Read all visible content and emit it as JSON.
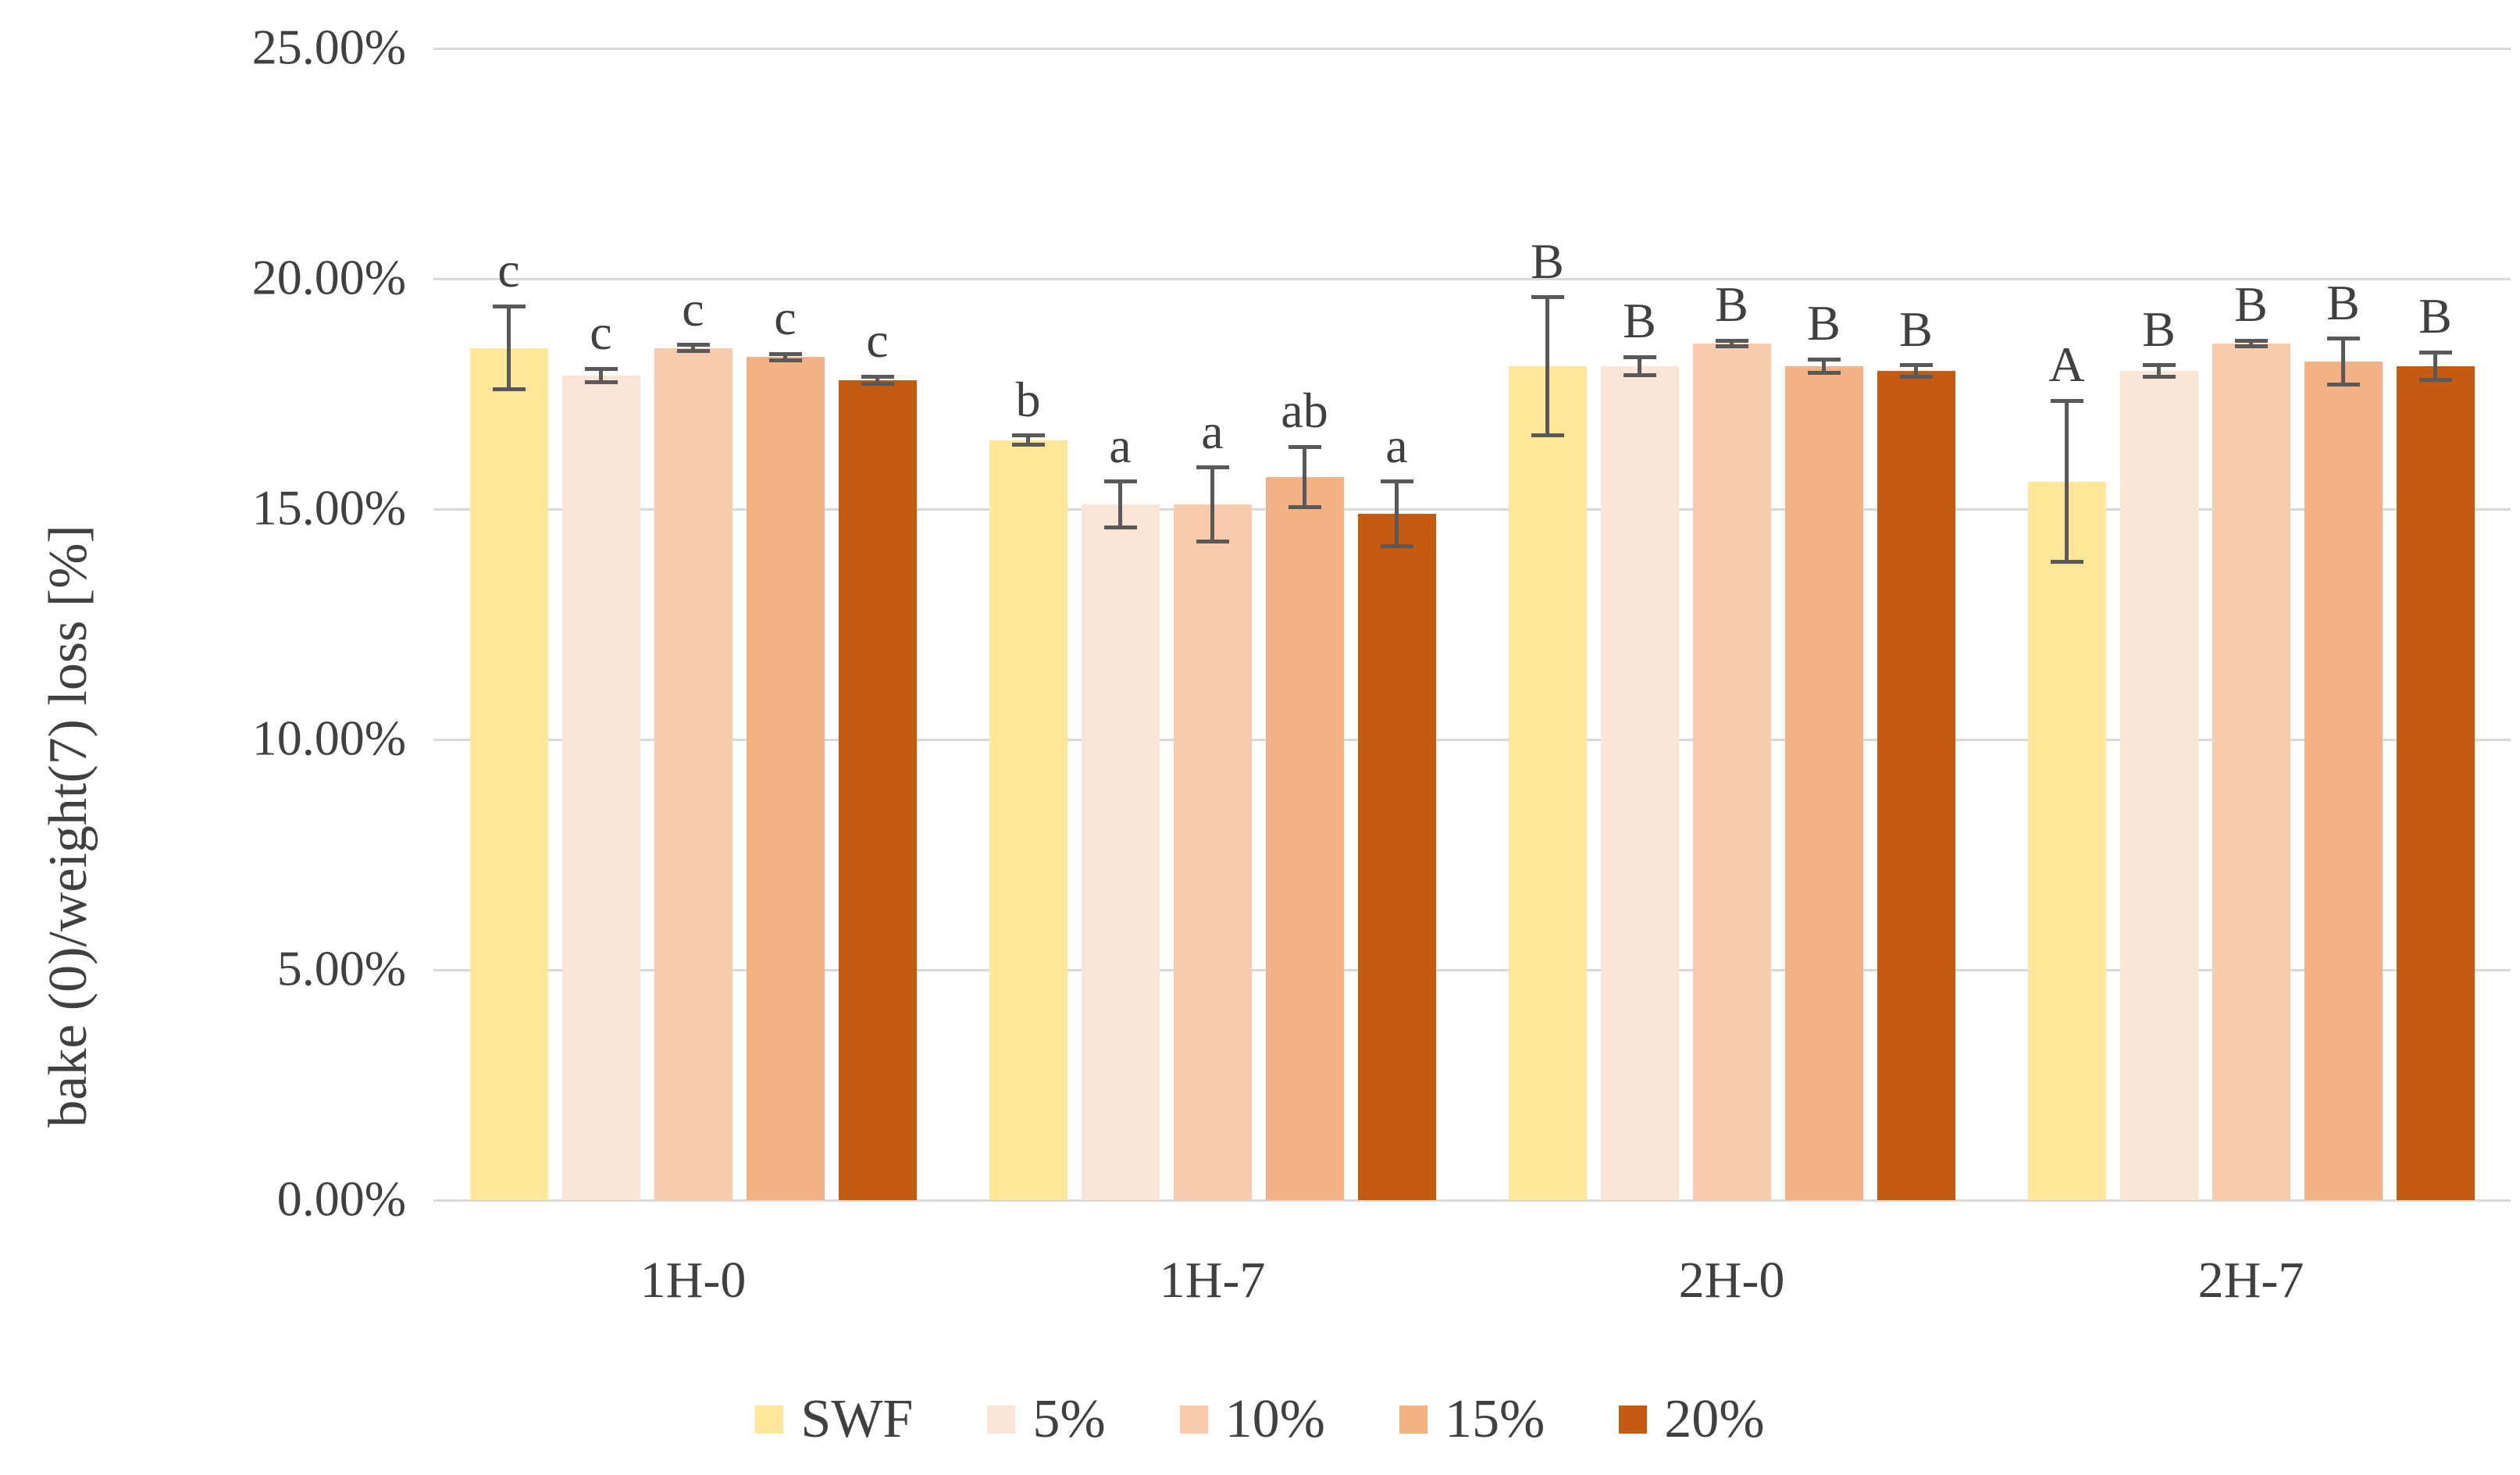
{
  "chart_data": {
    "type": "bar",
    "title": "",
    "xlabel": "",
    "ylabel": "bake (0)/weight(7) loss [%]",
    "ylim": [
      0,
      25
    ],
    "grid": true,
    "legend_position": "bottom",
    "yticks": [
      {
        "label": "25.00%",
        "value": 25
      },
      {
        "label": "20.00%",
        "value": 20
      },
      {
        "label": "15.00%",
        "value": 15
      },
      {
        "label": "10.00%",
        "value": 10
      },
      {
        "label": "5.00%",
        "value": 5
      },
      {
        "label": "0.00%",
        "value": 0
      }
    ],
    "categories": [
      "1H-0",
      "1H-7",
      "2H-0",
      "2H-7"
    ],
    "series": [
      {
        "name": "SWF",
        "color": "#FFE699",
        "values": [
          18.5,
          16.5,
          18.1,
          15.6
        ],
        "errors": [
          0.9,
          0.1,
          1.5,
          1.75
        ],
        "labels": [
          "c",
          "b",
          "B",
          "A"
        ]
      },
      {
        "name": "5%",
        "color": "#FBE5D6",
        "values": [
          17.9,
          15.1,
          18.1,
          18.0
        ],
        "errors": [
          0.15,
          0.5,
          0.2,
          0.12
        ],
        "labels": [
          "c",
          "a",
          "B",
          "B"
        ]
      },
      {
        "name": "10%",
        "color": "#F8CBAD",
        "values": [
          18.5,
          15.1,
          18.6,
          18.6
        ],
        "errors": [
          0.06,
          0.8,
          0.06,
          0.06
        ],
        "labels": [
          "c",
          "a",
          "B",
          "B"
        ]
      },
      {
        "name": "15%",
        "color": "#F4B183",
        "values": [
          18.3,
          15.7,
          18.1,
          18.2
        ],
        "errors": [
          0.07,
          0.65,
          0.15,
          0.5
        ],
        "labels": [
          "c",
          "ab",
          "B",
          "B"
        ]
      },
      {
        "name": "20%",
        "color": "#C55A11",
        "values": [
          17.8,
          14.9,
          18.0,
          18.1
        ],
        "errors": [
          0.08,
          0.7,
          0.12,
          0.3
        ],
        "labels": [
          "c",
          "a",
          "B",
          "B"
        ]
      }
    ],
    "colors": {
      "grid": "#d9d9d9",
      "error_bar": "#595959",
      "text": "#404040"
    }
  }
}
